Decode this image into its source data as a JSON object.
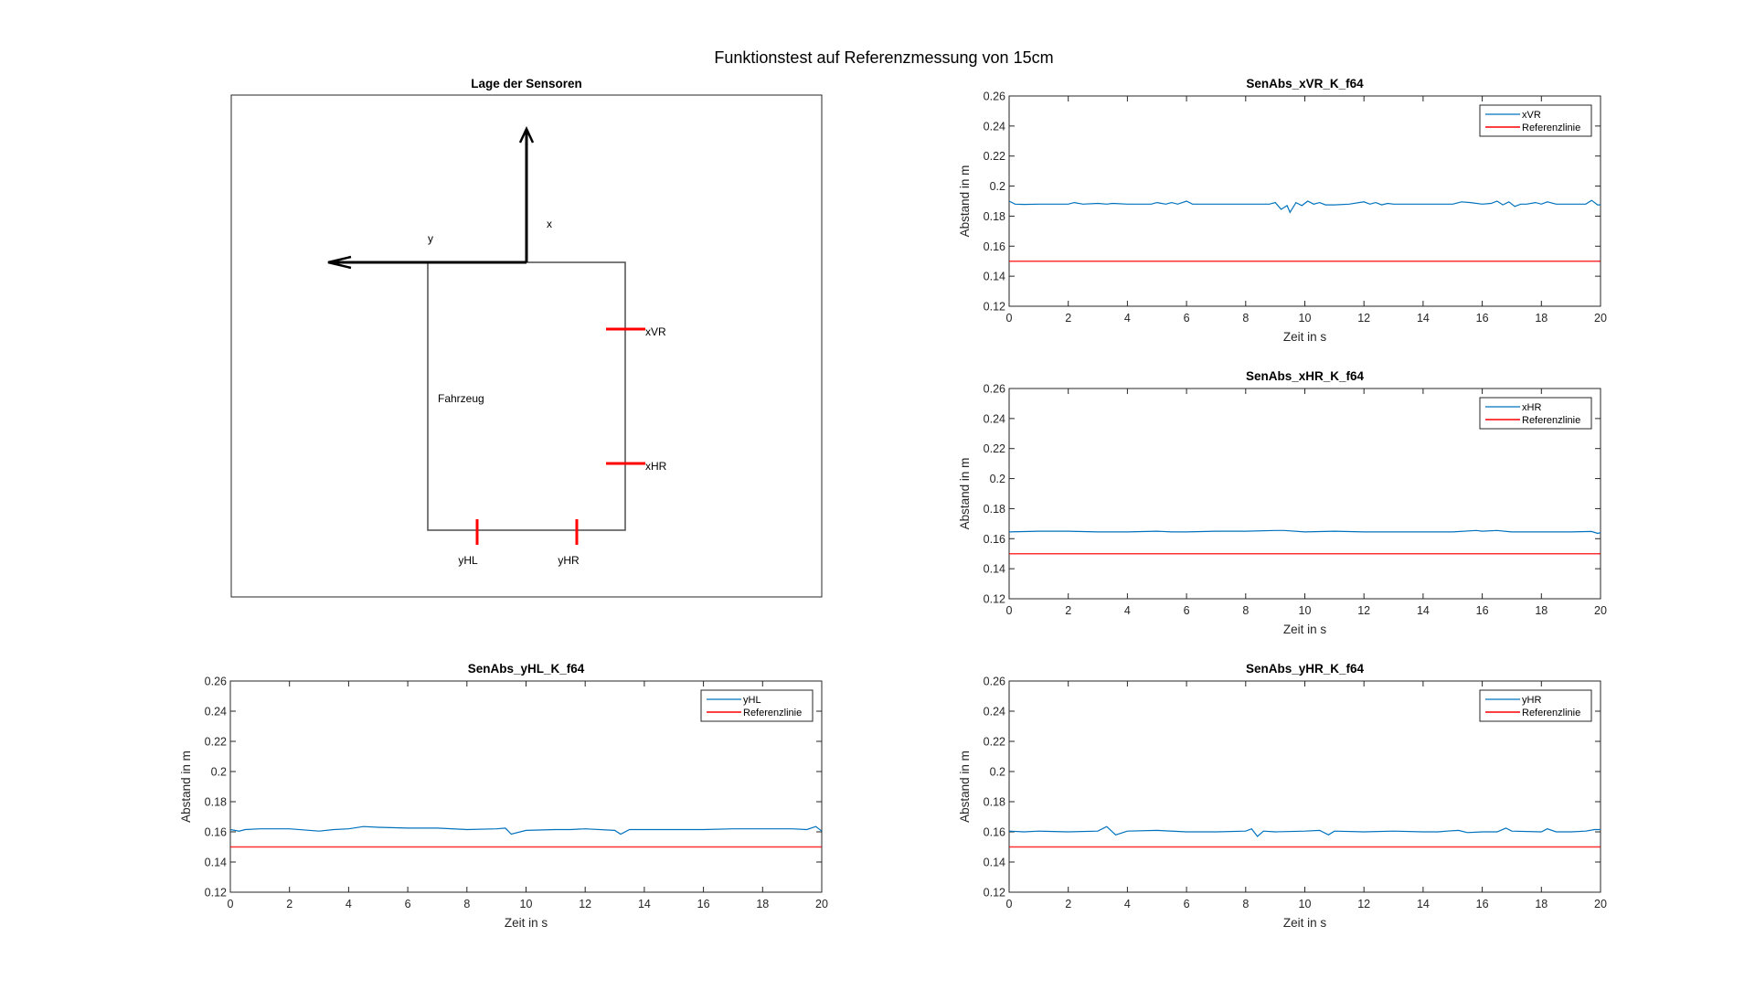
{
  "figure": {
    "suptitle": "Funktionstest auf Referenzmessung von 15cm"
  },
  "diagram": {
    "title": "Lage der Sensoren",
    "axis_x_label": "x",
    "axis_y_label": "y",
    "vehicle_label": "Fahrzeug",
    "sensors": [
      {
        "name": "xVR",
        "side": "right",
        "label": "xVR"
      },
      {
        "name": "xHR",
        "side": "right",
        "label": "xHR"
      },
      {
        "name": "yHL",
        "side": "bottom",
        "label": "yHL"
      },
      {
        "name": "yHR",
        "side": "bottom",
        "label": "yHR"
      }
    ],
    "sensor_color": "#ff0000"
  },
  "chart_data": [
    {
      "type": "line",
      "id": "xVR",
      "title": "SenAbs_xVR_K_f64",
      "xlabel": "Zeit in s",
      "ylabel": "Abstand in m",
      "xlim": [
        0,
        20
      ],
      "ylim": [
        0.12,
        0.26
      ],
      "xticks": [
        0,
        2,
        4,
        6,
        8,
        10,
        12,
        14,
        16,
        18,
        20
      ],
      "xtick_labels": [
        "0",
        "2",
        "4",
        "6",
        "8",
        "10",
        "12",
        "14",
        "16",
        "18",
        "20"
      ],
      "yticks": [
        0.12,
        0.14,
        0.16,
        0.18,
        0.2,
        0.22,
        0.24,
        0.26
      ],
      "ytick_labels": [
        "0.12",
        "0.14",
        "0.16",
        "0.18",
        "0.2",
        "0.22",
        "0.24",
        "0.26"
      ],
      "legend_position": "top-right",
      "grid": false,
      "series": [
        {
          "name": "xVR",
          "color": "#0072bd",
          "x": [
            0,
            0.2,
            0.5,
            1,
            1.5,
            2,
            2.2,
            2.5,
            3,
            3.3,
            3.5,
            4,
            4.5,
            4.8,
            5,
            5.3,
            5.5,
            5.7,
            6,
            6.2,
            6.5,
            7,
            7.5,
            8,
            8.5,
            8.8,
            9,
            9.2,
            9.4,
            9.5,
            9.7,
            9.9,
            10.1,
            10.3,
            10.5,
            10.7,
            11,
            11.5,
            12,
            12.2,
            12.4,
            12.6,
            12.8,
            13,
            13.5,
            14,
            14.5,
            15,
            15.3,
            15.6,
            16,
            16.3,
            16.5,
            16.7,
            16.9,
            17.1,
            17.3,
            17.5,
            17.8,
            18,
            18.2,
            18.5,
            19,
            19.5,
            19.7,
            19.9,
            20
          ],
          "y": [
            0.19,
            0.188,
            0.1878,
            0.188,
            0.188,
            0.188,
            0.189,
            0.188,
            0.1885,
            0.188,
            0.1885,
            0.188,
            0.188,
            0.188,
            0.189,
            0.188,
            0.189,
            0.188,
            0.19,
            0.188,
            0.188,
            0.188,
            0.188,
            0.188,
            0.188,
            0.188,
            0.189,
            0.1845,
            0.187,
            0.1825,
            0.189,
            0.187,
            0.19,
            0.188,
            0.189,
            0.1875,
            0.1875,
            0.188,
            0.1895,
            0.188,
            0.189,
            0.1875,
            0.1885,
            0.188,
            0.188,
            0.188,
            0.188,
            0.188,
            0.1895,
            0.189,
            0.188,
            0.1885,
            0.19,
            0.1875,
            0.1895,
            0.1865,
            0.188,
            0.188,
            0.189,
            0.188,
            0.1895,
            0.188,
            0.188,
            0.188,
            0.1905,
            0.1875,
            0.1875
          ]
        },
        {
          "name": "Referenzlinie",
          "color": "#ff0000",
          "x": [
            0,
            20
          ],
          "y": [
            0.15,
            0.15
          ]
        }
      ]
    },
    {
      "type": "line",
      "id": "xHR",
      "title": "SenAbs_xHR_K_f64",
      "xlabel": "Zeit in s",
      "ylabel": "Abstand in m",
      "xlim": [
        0,
        20
      ],
      "ylim": [
        0.12,
        0.26
      ],
      "xticks": [
        0,
        2,
        4,
        6,
        8,
        10,
        12,
        14,
        16,
        18,
        20
      ],
      "xtick_labels": [
        "0",
        "2",
        "4",
        "6",
        "8",
        "10",
        "12",
        "14",
        "16",
        "18",
        "20"
      ],
      "yticks": [
        0.12,
        0.14,
        0.16,
        0.18,
        0.2,
        0.22,
        0.24,
        0.26
      ],
      "ytick_labels": [
        "0.12",
        "0.14",
        "0.16",
        "0.18",
        "0.2",
        "0.22",
        "0.24",
        "0.26"
      ],
      "legend_position": "top-right",
      "grid": false,
      "series": [
        {
          "name": "xHR",
          "color": "#0072bd",
          "x": [
            0,
            1,
            2,
            3,
            4,
            5,
            5.5,
            6,
            7,
            8,
            9,
            9.3,
            10,
            11,
            12,
            13,
            14,
            15,
            15.8,
            16,
            16.5,
            17,
            18,
            19,
            19.7,
            19.9,
            20
          ],
          "y": [
            0.1645,
            0.165,
            0.165,
            0.1645,
            0.1645,
            0.165,
            0.1645,
            0.1645,
            0.165,
            0.165,
            0.1655,
            0.1655,
            0.1645,
            0.165,
            0.1645,
            0.1645,
            0.1645,
            0.1645,
            0.1655,
            0.165,
            0.1655,
            0.1645,
            0.1645,
            0.1645,
            0.1648,
            0.1635,
            0.164
          ]
        },
        {
          "name": "Referenzlinie",
          "color": "#ff0000",
          "x": [
            0,
            20
          ],
          "y": [
            0.15,
            0.15
          ]
        }
      ]
    },
    {
      "type": "line",
      "id": "yHL",
      "title": "SenAbs_yHL_K_f64",
      "xlabel": "Zeit in s",
      "ylabel": "Abstand in m",
      "xlim": [
        0,
        20
      ],
      "ylim": [
        0.12,
        0.26
      ],
      "xticks": [
        0,
        2,
        4,
        6,
        8,
        10,
        12,
        14,
        16,
        18,
        20
      ],
      "xtick_labels": [
        "0",
        "2",
        "4",
        "6",
        "8",
        "10",
        "12",
        "14",
        "16",
        "18",
        "20"
      ],
      "yticks": [
        0.12,
        0.14,
        0.16,
        0.18,
        0.2,
        0.22,
        0.24,
        0.26
      ],
      "ytick_labels": [
        "0.12",
        "0.14",
        "0.16",
        "0.18",
        "0.2",
        "0.22",
        "0.24",
        "0.26"
      ],
      "legend_position": "top-right",
      "grid": false,
      "series": [
        {
          "name": "yHL",
          "color": "#0072bd",
          "x": [
            0,
            0.3,
            0.5,
            1,
            2,
            3,
            3.5,
            4,
            4.5,
            5,
            6,
            7,
            8,
            9,
            9.3,
            9.5,
            10,
            11,
            11.5,
            12,
            13,
            13.2,
            13.5,
            14,
            15,
            16,
            17,
            18,
            19,
            19.5,
            19.8,
            20
          ],
          "y": [
            0.1615,
            0.1605,
            0.1615,
            0.162,
            0.162,
            0.1605,
            0.1615,
            0.162,
            0.1635,
            0.163,
            0.1625,
            0.1625,
            0.1615,
            0.162,
            0.1625,
            0.1585,
            0.161,
            0.1615,
            0.1615,
            0.162,
            0.161,
            0.1585,
            0.1615,
            0.1615,
            0.1615,
            0.1615,
            0.162,
            0.162,
            0.162,
            0.1615,
            0.1635,
            0.1605
          ]
        },
        {
          "name": "Referenzlinie",
          "color": "#ff0000",
          "x": [
            0,
            20
          ],
          "y": [
            0.15,
            0.15
          ]
        }
      ]
    },
    {
      "type": "line",
      "id": "yHR",
      "title": "SenAbs_yHR_K_f64",
      "xlabel": "Zeit in s",
      "ylabel": "Abstand in m",
      "xlim": [
        0,
        20
      ],
      "ylim": [
        0.12,
        0.26
      ],
      "xticks": [
        0,
        2,
        4,
        6,
        8,
        10,
        12,
        14,
        16,
        18,
        20
      ],
      "xtick_labels": [
        "0",
        "2",
        "4",
        "6",
        "8",
        "10",
        "12",
        "14",
        "16",
        "18",
        "20"
      ],
      "yticks": [
        0.12,
        0.14,
        0.16,
        0.18,
        0.2,
        0.22,
        0.24,
        0.26
      ],
      "ytick_labels": [
        "0.12",
        "0.14",
        "0.16",
        "0.18",
        "0.2",
        "0.22",
        "0.24",
        "0.26"
      ],
      "legend_position": "top-right",
      "grid": false,
      "series": [
        {
          "name": "yHR",
          "color": "#0072bd",
          "x": [
            0,
            0.5,
            1,
            2,
            3,
            3.3,
            3.6,
            4,
            5,
            6,
            7,
            8,
            8.2,
            8.4,
            8.6,
            9,
            10,
            10.5,
            10.8,
            11,
            12,
            13,
            14,
            14.5,
            14.8,
            15.2,
            15.5,
            16,
            16.5,
            16.8,
            17,
            18,
            18.2,
            18.5,
            19,
            19.5,
            19.8,
            20
          ],
          "y": [
            0.1605,
            0.16,
            0.1605,
            0.16,
            0.1605,
            0.1635,
            0.158,
            0.1605,
            0.161,
            0.16,
            0.16,
            0.1605,
            0.162,
            0.157,
            0.1605,
            0.16,
            0.1605,
            0.161,
            0.158,
            0.1605,
            0.16,
            0.1605,
            0.16,
            0.16,
            0.1605,
            0.161,
            0.1595,
            0.16,
            0.16,
            0.1625,
            0.1605,
            0.16,
            0.162,
            0.16,
            0.16,
            0.1605,
            0.1615,
            0.1615
          ]
        },
        {
          "name": "Referenzlinie",
          "color": "#ff0000",
          "x": [
            0,
            20
          ],
          "y": [
            0.15,
            0.15
          ]
        }
      ]
    }
  ]
}
